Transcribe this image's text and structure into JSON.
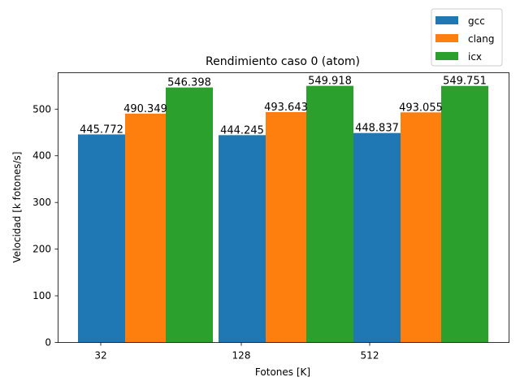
{
  "chart_data": {
    "type": "bar",
    "title": "Rendimiento caso 0 (atom)",
    "xlabel": "Fotones [K]",
    "ylabel": "Velocidad [k fotones/s]",
    "categories": [
      "32",
      "128",
      "512"
    ],
    "ylim": [
      0,
      578
    ],
    "yticks": [
      0,
      100,
      200,
      300,
      400,
      500
    ],
    "grid": false,
    "legend_position": "upper-right, above plot",
    "series": [
      {
        "name": "gcc",
        "color": "#1f77b4",
        "values": [
          445.772,
          444.245,
          448.837
        ],
        "labels": [
          "445.772",
          "444.245",
          "448.837"
        ]
      },
      {
        "name": "clang",
        "color": "#ff7f0e",
        "values": [
          490.349,
          493.643,
          493.055
        ],
        "labels": [
          "490.349",
          "493.643",
          "493.055"
        ]
      },
      {
        "name": "icx",
        "color": "#2ca02c",
        "values": [
          546.398,
          549.918,
          549.751
        ],
        "labels": [
          "546.398",
          "549.918",
          "549.751"
        ]
      }
    ]
  }
}
